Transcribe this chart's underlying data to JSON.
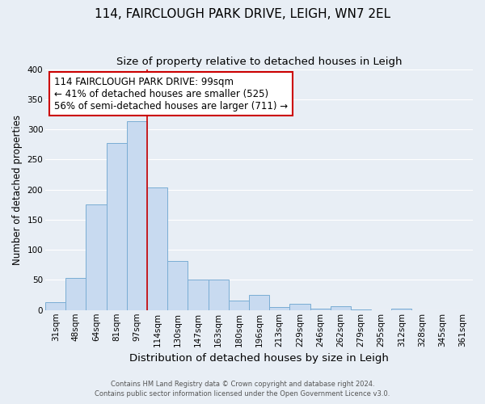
{
  "title": "114, FAIRCLOUGH PARK DRIVE, LEIGH, WN7 2EL",
  "subtitle": "Size of property relative to detached houses in Leigh",
  "xlabel": "Distribution of detached houses by size in Leigh",
  "ylabel": "Number of detached properties",
  "bar_labels": [
    "31sqm",
    "48sqm",
    "64sqm",
    "81sqm",
    "97sqm",
    "114sqm",
    "130sqm",
    "147sqm",
    "163sqm",
    "180sqm",
    "196sqm",
    "213sqm",
    "229sqm",
    "246sqm",
    "262sqm",
    "279sqm",
    "295sqm",
    "312sqm",
    "328sqm",
    "345sqm",
    "361sqm"
  ],
  "bar_values": [
    13,
    54,
    175,
    277,
    313,
    203,
    81,
    51,
    50,
    16,
    25,
    5,
    10,
    2,
    6,
    1,
    0,
    2,
    0,
    0,
    0
  ],
  "bar_color": "#c8daf0",
  "bar_edge_color": "#7aadd4",
  "vline_index": 4.5,
  "vline_color": "#cc0000",
  "annotation_text": "114 FAIRCLOUGH PARK DRIVE: 99sqm\n← 41% of detached houses are smaller (525)\n56% of semi-detached houses are larger (711) →",
  "annotation_box_color": "#ffffff",
  "annotation_box_edge": "#cc0000",
  "annotation_fontsize": 8.5,
  "title_fontsize": 11,
  "subtitle_fontsize": 9.5,
  "ylabel_fontsize": 8.5,
  "xlabel_fontsize": 9.5,
  "tick_fontsize": 7.5,
  "ylim": [
    0,
    400
  ],
  "yticks": [
    0,
    50,
    100,
    150,
    200,
    250,
    300,
    350,
    400
  ],
  "footer_line1": "Contains HM Land Registry data © Crown copyright and database right 2024.",
  "footer_line2": "Contains public sector information licensed under the Open Government Licence v3.0.",
  "background_color": "#e8eef5",
  "grid_color": "#ffffff"
}
